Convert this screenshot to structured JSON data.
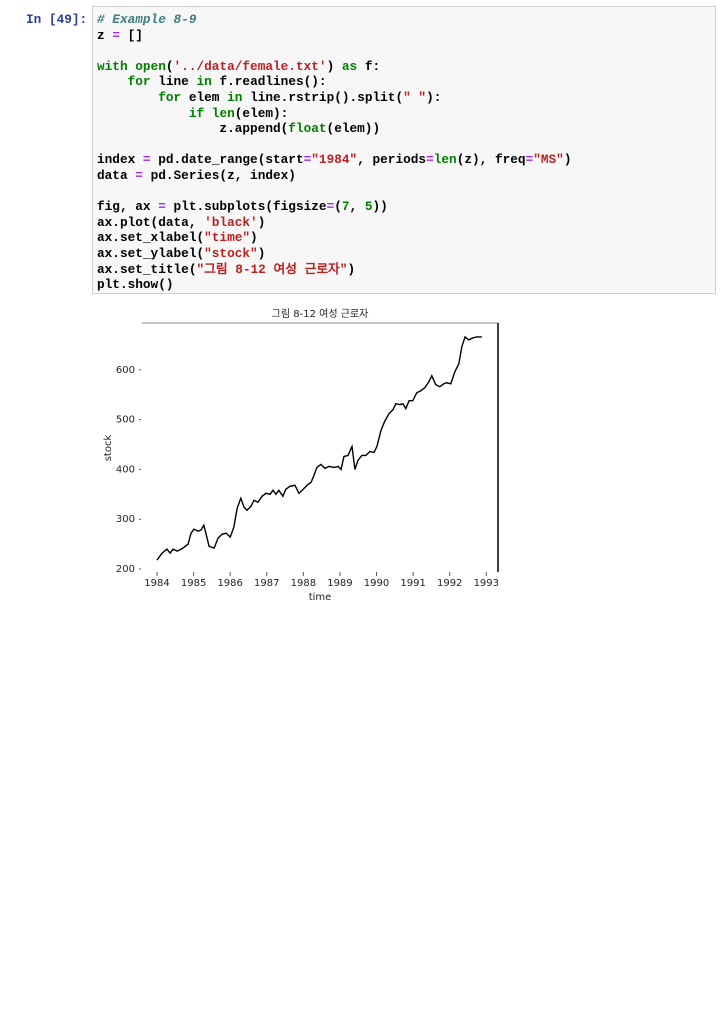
{
  "cell": {
    "prompt": "In [49]:",
    "code": [
      [
        {
          "text": "# Example 8-9",
          "color": "#408080",
          "italic": true
        }
      ],
      [
        {
          "text": "z "
        },
        {
          "text": "=",
          "color": "#AA22FF"
        },
        {
          "text": " []"
        }
      ],
      [],
      [
        {
          "text": "with",
          "color": "#008000"
        },
        {
          "text": " "
        },
        {
          "text": "open",
          "color": "#008000"
        },
        {
          "text": "("
        },
        {
          "text": "'../data/female.txt'",
          "color": "#BA2121"
        },
        {
          "text": ") "
        },
        {
          "text": "as",
          "color": "#008000"
        },
        {
          "text": " f:"
        }
      ],
      [
        {
          "text": "    "
        },
        {
          "text": "for",
          "color": "#008000"
        },
        {
          "text": " line "
        },
        {
          "text": "in",
          "color": "#008000"
        },
        {
          "text": " f.readlines():"
        }
      ],
      [
        {
          "text": "        "
        },
        {
          "text": "for",
          "color": "#008000"
        },
        {
          "text": " elem "
        },
        {
          "text": "in",
          "color": "#008000"
        },
        {
          "text": " line.rstrip().split("
        },
        {
          "text": "\" \"",
          "color": "#BA2121"
        },
        {
          "text": "):"
        }
      ],
      [
        {
          "text": "            "
        },
        {
          "text": "if",
          "color": "#008000"
        },
        {
          "text": " "
        },
        {
          "text": "len",
          "color": "#008000"
        },
        {
          "text": "(elem):"
        }
      ],
      [
        {
          "text": "                z.append("
        },
        {
          "text": "float",
          "color": "#008000"
        },
        {
          "text": "(elem))"
        }
      ],
      [],
      [
        {
          "text": "index "
        },
        {
          "text": "=",
          "color": "#AA22FF"
        },
        {
          "text": " pd.date_range(start"
        },
        {
          "text": "=",
          "color": "#AA22FF"
        },
        {
          "text": "\"1984\"",
          "color": "#BA2121"
        },
        {
          "text": ", periods"
        },
        {
          "text": "=",
          "color": "#AA22FF"
        },
        {
          "text": "len",
          "color": "#008000"
        },
        {
          "text": "(z), freq"
        },
        {
          "text": "=",
          "color": "#AA22FF"
        },
        {
          "text": "\"MS\"",
          "color": "#BA2121"
        },
        {
          "text": ")"
        }
      ],
      [
        {
          "text": "data "
        },
        {
          "text": "=",
          "color": "#AA22FF"
        },
        {
          "text": " pd.Series(z, index)"
        }
      ],
      [],
      [
        {
          "text": "fig, ax "
        },
        {
          "text": "=",
          "color": "#AA22FF"
        },
        {
          "text": " plt.subplots(figsize"
        },
        {
          "text": "=",
          "color": "#AA22FF"
        },
        {
          "text": "("
        },
        {
          "text": "7",
          "color": "#008000"
        },
        {
          "text": ", "
        },
        {
          "text": "5",
          "color": "#008000"
        },
        {
          "text": "))"
        }
      ],
      [
        {
          "text": "ax.plot(data, "
        },
        {
          "text": "'black'",
          "color": "#BA2121"
        },
        {
          "text": ")"
        }
      ],
      [
        {
          "text": "ax.set_xlabel("
        },
        {
          "text": "\"time\"",
          "color": "#BA2121"
        },
        {
          "text": ")"
        }
      ],
      [
        {
          "text": "ax.set_ylabel("
        },
        {
          "text": "\"stock\"",
          "color": "#BA2121"
        },
        {
          "text": ")"
        }
      ],
      [
        {
          "text": "ax.set_title("
        },
        {
          "text": "\"그림 8-12 여성 근로자\"",
          "color": "#BA2121"
        },
        {
          "text": ")"
        }
      ],
      [
        {
          "text": "plt.show()"
        }
      ]
    ]
  },
  "chart_data": {
    "type": "line",
    "title": "그림 8-12 여성 근로자",
    "x_label": "time",
    "y_label": "stock",
    "color": "#000000",
    "x": [
      1984.0,
      1984.14,
      1984.27,
      1984.36,
      1984.44,
      1984.55,
      1984.71,
      1984.85,
      1984.93,
      1985.01,
      1985.12,
      1985.2,
      1985.28,
      1985.37,
      1985.42,
      1985.56,
      1985.67,
      1985.78,
      1985.89,
      1986.0,
      1986.1,
      1986.19,
      1986.29,
      1986.38,
      1986.46,
      1986.57,
      1986.65,
      1986.76,
      1986.87,
      1986.98,
      1987.09,
      1987.17,
      1987.25,
      1987.33,
      1987.44,
      1987.52,
      1987.63,
      1987.77,
      1987.88,
      1988.02,
      1988.13,
      1988.21,
      1988.29,
      1988.37,
      1988.48,
      1988.59,
      1988.7,
      1988.84,
      1988.95,
      1989.03,
      1989.11,
      1989.22,
      1989.33,
      1989.41,
      1989.49,
      1989.6,
      1989.71,
      1989.82,
      1989.93,
      1990.01,
      1990.12,
      1990.22,
      1990.34,
      1990.45,
      1990.53,
      1990.64,
      1990.72,
      1990.8,
      1990.89,
      1990.99,
      1991.1,
      1991.21,
      1991.32,
      1991.43,
      1991.51,
      1991.62,
      1991.73,
      1991.84,
      1991.92,
      1992.03,
      1992.14,
      1992.25,
      1992.33,
      1992.42,
      1992.52,
      1992.63,
      1992.74,
      1992.88
    ],
    "values": [
      218,
      232,
      240,
      232,
      240,
      236,
      242,
      250,
      272,
      280,
      276,
      278,
      288,
      262,
      246,
      242,
      262,
      270,
      272,
      264,
      284,
      322,
      342,
      324,
      318,
      326,
      338,
      334,
      346,
      352,
      350,
      358,
      350,
      358,
      346,
      360,
      366,
      368,
      352,
      362,
      370,
      374,
      388,
      404,
      410,
      402,
      406,
      404,
      406,
      400,
      426,
      428,
      446,
      400,
      418,
      428,
      428,
      436,
      434,
      446,
      478,
      496,
      512,
      520,
      532,
      530,
      532,
      522,
      538,
      538,
      554,
      558,
      564,
      576,
      588,
      570,
      566,
      572,
      574,
      572,
      596,
      612,
      646,
      666,
      660,
      664,
      666,
      666
    ],
    "xlim": [
      1983.59,
      1993.32
    ],
    "ylim": [
      194,
      694
    ],
    "xticks": [
      1984,
      1985,
      1986,
      1987,
      1988,
      1989,
      1990,
      1991,
      1992,
      1993
    ],
    "yticks": [
      200,
      300,
      400,
      500,
      600
    ]
  }
}
